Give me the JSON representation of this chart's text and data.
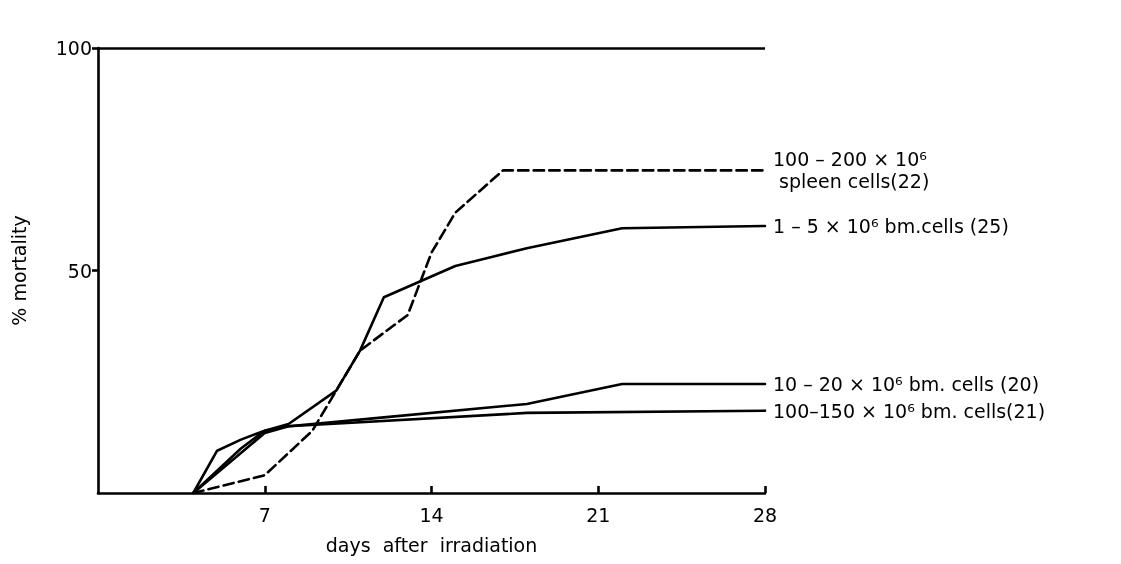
{
  "chart_data": {
    "type": "line",
    "xlabel": "days  after  irradiation",
    "ylabel": "% mortality",
    "xlim": [
      0,
      28
    ],
    "ylim": [
      0,
      100
    ],
    "xticks": [
      7,
      14,
      21,
      28
    ],
    "yticks": [
      50,
      100
    ],
    "grid": false,
    "legend": false,
    "marker": "none",
    "ref_lines": [
      {
        "axis": "y",
        "value": 100,
        "color": "#000000"
      }
    ],
    "series": [
      {
        "name": "100 – 200 × 10⁶\n spleen cells(22)",
        "color": "#000000",
        "line_style": "dashed",
        "x": [
          4,
          7,
          9,
          11,
          13,
          14,
          15,
          17,
          28
        ],
        "values": [
          0,
          4,
          14,
          32,
          40,
          54,
          63,
          72.5,
          72.5
        ]
      },
      {
        "name": "1 – 5 × 10⁶ bm.cells (25)",
        "color": "#000000",
        "line_style": "solid",
        "x": [
          4,
          6,
          7,
          8,
          10,
          11,
          12,
          15,
          18,
          22,
          28
        ],
        "values": [
          0,
          10,
          14,
          15.5,
          23,
          32,
          44,
          51,
          55,
          59.5,
          60
        ]
      },
      {
        "name": "10 – 20 × 10⁶ bm. cells (20)",
        "color": "#000000",
        "line_style": "solid",
        "x": [
          4,
          6,
          7,
          8,
          12,
          18,
          22,
          28
        ],
        "values": [
          0,
          9,
          13.5,
          15,
          17,
          20,
          24.5,
          24.5
        ]
      },
      {
        "name": "100–150 × 10⁶ bm. cells(21)",
        "color": "#000000",
        "line_style": "solid",
        "x": [
          4,
          5,
          6,
          7,
          8,
          18,
          28
        ],
        "values": [
          0,
          9.5,
          12,
          14,
          15,
          18,
          18.5
        ]
      }
    ]
  }
}
